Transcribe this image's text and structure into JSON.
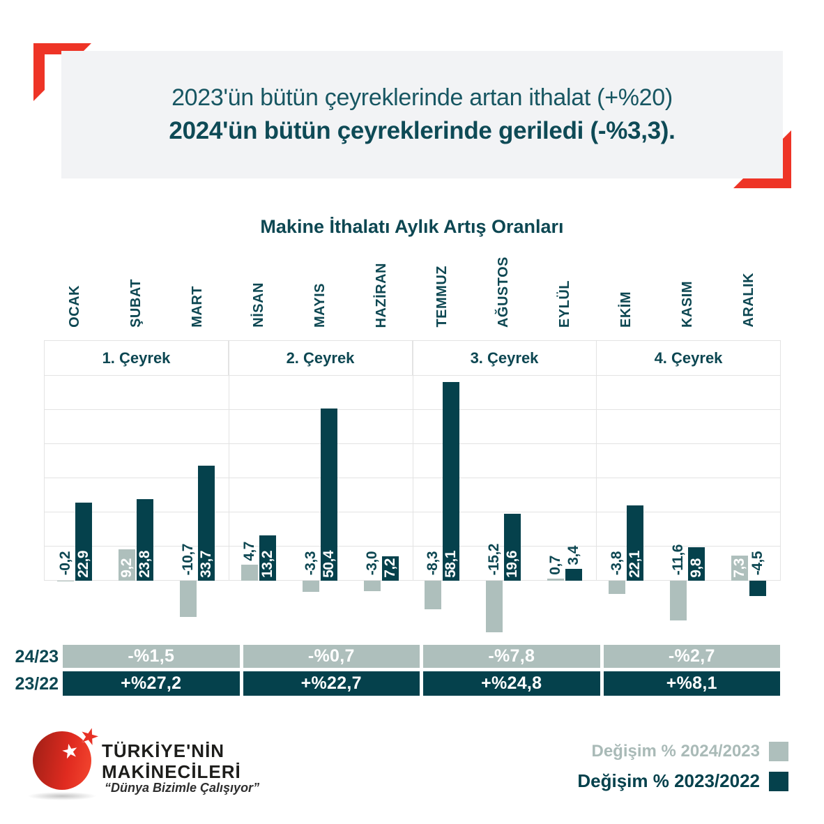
{
  "header": {
    "line1": "2023'ün bütün çeyreklerinde artan ithalat (+%20)",
    "line2": "2024'ün bütün çeyreklerinde geriledi (-%3,3).",
    "panel_color": "#f2f3f5",
    "accent_color": "#ee3426"
  },
  "chart_data": {
    "type": "bar",
    "title": "Makine İthalatı Aylık Artış Oranları",
    "categories": [
      "OCAK",
      "ŞUBAT",
      "MART",
      "NİSAN",
      "MAYIS",
      "HAZİRAN",
      "TEMMUZ",
      "AĞUSTOS",
      "EYLÜL",
      "EKİM",
      "KASIM",
      "ARALIK"
    ],
    "quarters": [
      "1. Çeyrek",
      "2. Çeyrek",
      "3. Çeyrek",
      "4. Çeyrek"
    ],
    "series": [
      {
        "name": "Değişim % 2024/2023",
        "color": "#aebfbc",
        "values": [
          -0.2,
          9.2,
          -10.7,
          4.7,
          -3.3,
          -3.0,
          -8.3,
          -15.2,
          0.7,
          -3.8,
          -11.6,
          7.3
        ]
      },
      {
        "name": "Değişim % 2023/2022",
        "color": "#05414c",
        "values": [
          22.9,
          23.8,
          33.7,
          13.2,
          50.4,
          7.2,
          58.1,
          19.6,
          3.4,
          22.1,
          9.8,
          -4.5
        ]
      }
    ],
    "ylim": [
      0,
      60
    ],
    "grid_step": 10,
    "grid": "horizontal-lines",
    "decimal_separator": ",",
    "legend_position": "bottom-right"
  },
  "summary": {
    "rows": [
      {
        "label": "24/23",
        "values": [
          "-%1,5",
          "-%0,7",
          "-%7,8",
          "-%2,7"
        ]
      },
      {
        "label": "23/22",
        "values": [
          "+%27,2",
          "+%22,7",
          "+%24,8",
          "+%8,1"
        ]
      }
    ]
  },
  "legend": {
    "items": [
      {
        "label": "Değişim % 2024/2023",
        "color": "#aebfbc"
      },
      {
        "label": "Değişim % 2023/2022",
        "color": "#05414c"
      }
    ]
  },
  "logo": {
    "name_line1": "TÜRKİYE'NİN",
    "name_line2": "MAKİNECİLERİ",
    "tagline": "“Dünya Bizimle Çalışıyor”"
  },
  "colors": {
    "dark_teal": "#05414c",
    "gray_green": "#aebfbc",
    "teal_text": "#0d4752",
    "grid_line": "#e3e3e3",
    "red": "#ee3426",
    "panel": "#f2f3f5"
  }
}
